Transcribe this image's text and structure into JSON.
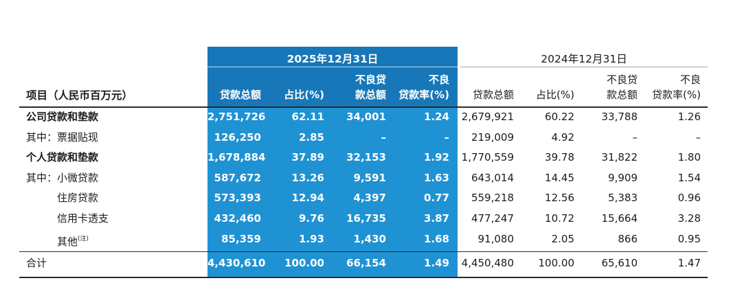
{
  "header": {
    "item": "项目（人民币百万元）",
    "year_2025": "2025年12月31日",
    "year_2024": "2024年12月31日",
    "col_loans": "贷款总额",
    "col_share": "占比(%)",
    "col_npl_1": "不良贷",
    "col_npl_2": "款总额",
    "col_ratio_1": "不良",
    "col_ratio_2": "贷款率(%)"
  },
  "rows": [
    {
      "label": "公司贷款和垫款",
      "bold": true,
      "y2025": [
        "2,751,726",
        "62.11",
        "34,001",
        "1.24"
      ],
      "y2024": [
        "2,679,921",
        "60.22",
        "33,788",
        "1.26"
      ]
    },
    {
      "label": "其中：票据贴现",
      "bold": false,
      "y2025": [
        "126,250",
        "2.85",
        "–",
        "–"
      ],
      "y2024": [
        "219,009",
        "4.92",
        "–",
        "–"
      ]
    },
    {
      "label": "个人贷款和垫款",
      "bold": true,
      "y2025": [
        "1,678,884",
        "37.89",
        "32,153",
        "1.92"
      ],
      "y2024": [
        "1,770,559",
        "39.78",
        "31,822",
        "1.80"
      ]
    },
    {
      "label": "其中：小微贷款",
      "bold": false,
      "y2025": [
        "587,672",
        "13.26",
        "9,591",
        "1.63"
      ],
      "y2024": [
        "643,014",
        "14.45",
        "9,909",
        "1.54"
      ]
    },
    {
      "label": "住房贷款",
      "bold": false,
      "y2025": [
        "573,393",
        "12.94",
        "4,397",
        "0.77"
      ],
      "y2024": [
        "559,218",
        "12.56",
        "5,383",
        "0.96"
      ]
    },
    {
      "label": "信用卡透支",
      "bold": false,
      "y2025": [
        "432,460",
        "9.76",
        "16,735",
        "3.87"
      ],
      "y2024": [
        "477,247",
        "10.72",
        "15,664",
        "3.28"
      ]
    },
    {
      "label": "其他",
      "note": "(注)",
      "bold": false,
      "y2025": [
        "85,359",
        "1.93",
        "1,430",
        "1.68"
      ],
      "y2024": [
        "91,080",
        "2.05",
        "866",
        "0.95"
      ]
    }
  ],
  "total": {
    "label": "合计",
    "y2025": [
      "4,430,610",
      "100.00",
      "66,154",
      "1.49"
    ],
    "y2024": [
      "4,450,480",
      "100.00",
      "65,610",
      "1.47"
    ]
  },
  "colors": {
    "band": "#1f92d3",
    "band_header": "#1777b8",
    "text": "#1a1a1a",
    "band_text": "#ffffff"
  }
}
